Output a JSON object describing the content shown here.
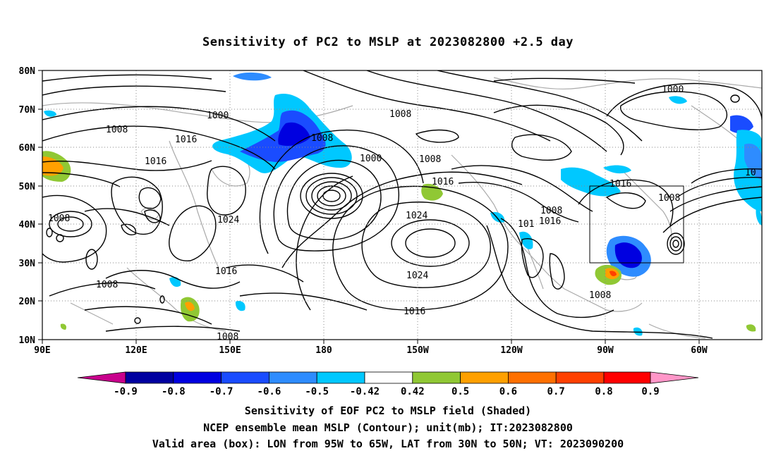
{
  "title": "Sensitivity of PC2 to MSLP at 2023082800 +2.5 day",
  "map": {
    "lat_labels": [
      "80N",
      "70N",
      "60N",
      "50N",
      "40N",
      "30N",
      "20N",
      "10N"
    ],
    "lon_labels": [
      "90E",
      "120E",
      "150E",
      "180",
      "150W",
      "120W",
      "90W",
      "60W"
    ],
    "contour_labels": [
      {
        "text": "1000"
      },
      {
        "text": "1008"
      },
      {
        "text": "1016"
      },
      {
        "text": "1016"
      },
      {
        "text": "1008"
      },
      {
        "text": "1024"
      },
      {
        "text": "1016"
      },
      {
        "text": "1008"
      },
      {
        "text": "1008"
      },
      {
        "text": "1008"
      },
      {
        "text": "1000"
      },
      {
        "text": "1008"
      },
      {
        "text": "1016"
      },
      {
        "text": "1024"
      },
      {
        "text": "1024"
      },
      {
        "text": "1016"
      },
      {
        "text": "1008"
      },
      {
        "text": "101"
      },
      {
        "text": "1016"
      },
      {
        "text": "1016"
      },
      {
        "text": "1008"
      },
      {
        "text": "1008"
      },
      {
        "text": "1000"
      },
      {
        "text": "1008"
      },
      {
        "text": "10"
      }
    ],
    "valid_box": {
      "lon_from": "95W",
      "lon_to": "65W",
      "lat_from": "30N",
      "lat_to": "50N"
    },
    "colors": {
      "neg_0.9": "#c8008c",
      "neg_0.8": "#0000a0",
      "neg_0.7": "#0000e0",
      "neg_0.6": "#1a4cff",
      "neg_0.5": "#2e8cff",
      "neg_0.42": "#00c8ff",
      "pos_0.42": "#90c834",
      "pos_0.5": "#ffa000",
      "pos_0.6": "#ff7000",
      "pos_0.7": "#ff4000",
      "pos_0.8": "#ff0000",
      "pos_0.9": "#ff96c8"
    }
  },
  "colorbar": {
    "labels": [
      "-0.9",
      "-0.8",
      "-0.7",
      "-0.6",
      "-0.5",
      "-0.42",
      "0.42",
      "0.5",
      "0.6",
      "0.7",
      "0.8",
      "0.9"
    ],
    "colors": [
      "#c8008c",
      "#0000a0",
      "#0000e0",
      "#1a4cff",
      "#2e8cff",
      "#00c8ff",
      "#ffffff",
      "#90c834",
      "#ffa000",
      "#ff7000",
      "#ff4000",
      "#ff0000",
      "#ff96c8"
    ]
  },
  "caption": {
    "line1": "Sensitivity of EOF PC2 to MSLP field (Shaded)",
    "line2": "NCEP ensemble mean MSLP (Contour); unit(mb); IT:2023082800",
    "line3": "Valid area (box): LON from 95W to 65W, LAT from 30N to 50N; VT: 2023090200"
  }
}
